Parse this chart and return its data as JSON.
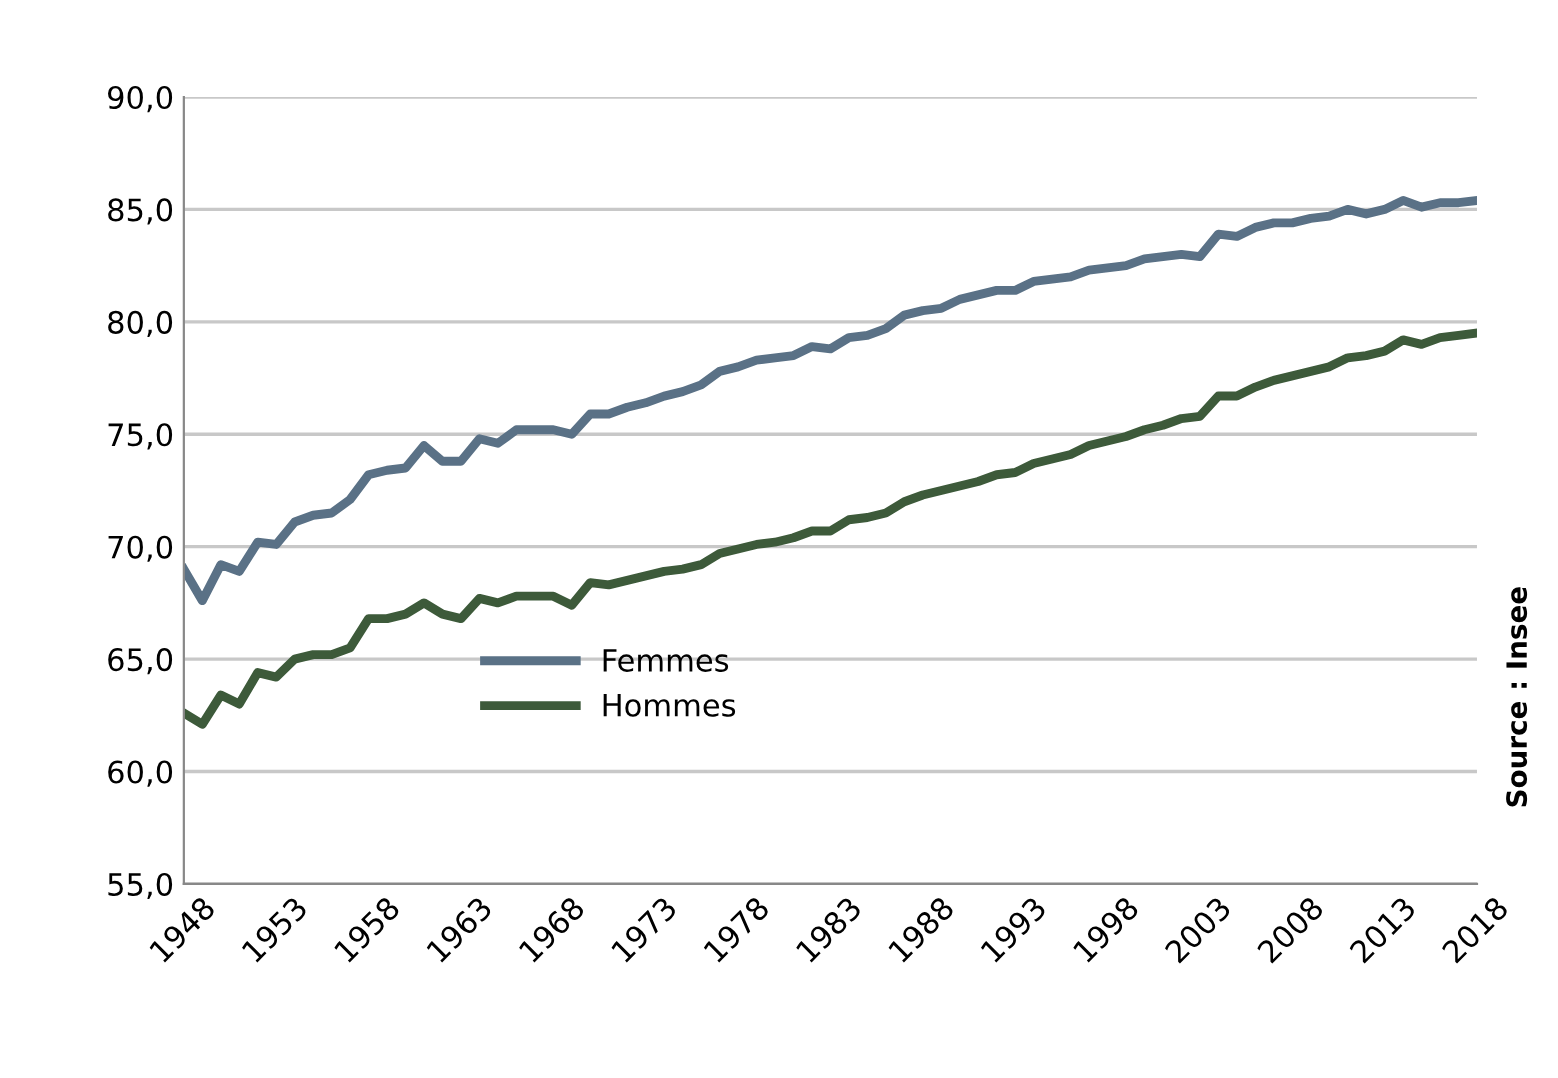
{
  "chart_data": {
    "type": "line",
    "x": [
      1948,
      1949,
      1950,
      1951,
      1952,
      1953,
      1954,
      1955,
      1956,
      1957,
      1958,
      1959,
      1960,
      1961,
      1962,
      1963,
      1964,
      1965,
      1966,
      1967,
      1968,
      1969,
      1970,
      1971,
      1972,
      1973,
      1974,
      1975,
      1976,
      1977,
      1978,
      1979,
      1980,
      1981,
      1982,
      1983,
      1984,
      1985,
      1986,
      1987,
      1988,
      1989,
      1990,
      1991,
      1992,
      1993,
      1994,
      1995,
      1996,
      1997,
      1998,
      1999,
      2000,
      2001,
      2002,
      2003,
      2004,
      2005,
      2006,
      2007,
      2008,
      2009,
      2010,
      2011,
      2012,
      2013,
      2014,
      2015,
      2016,
      2017,
      2018
    ],
    "series": [
      {
        "name": "Femmes",
        "color": "#5a7186",
        "values": [
          69.0,
          67.6,
          69.2,
          68.9,
          70.2,
          70.1,
          71.1,
          71.4,
          71.5,
          72.1,
          73.2,
          73.4,
          73.5,
          74.5,
          73.8,
          73.8,
          74.8,
          74.6,
          75.2,
          75.2,
          75.2,
          75.0,
          75.9,
          75.9,
          76.2,
          76.4,
          76.7,
          76.9,
          77.2,
          77.8,
          78.0,
          78.3,
          78.4,
          78.5,
          78.9,
          78.8,
          79.3,
          79.4,
          79.7,
          80.3,
          80.5,
          80.6,
          81.0,
          81.2,
          81.4,
          81.4,
          81.8,
          81.9,
          82.0,
          82.3,
          82.4,
          82.5,
          82.8,
          82.9,
          83.0,
          82.9,
          83.9,
          83.8,
          84.2,
          84.4,
          84.4,
          84.6,
          84.7,
          85.0,
          84.8,
          85.0,
          85.4,
          85.1,
          85.3,
          85.3,
          85.4
        ]
      },
      {
        "name": "Hommes",
        "color": "#3d5a3a",
        "values": [
          62.6,
          62.1,
          63.4,
          63.0,
          64.4,
          64.2,
          65.0,
          65.2,
          65.2,
          65.5,
          66.8,
          66.8,
          67.0,
          67.5,
          67.0,
          66.8,
          67.7,
          67.5,
          67.8,
          67.8,
          67.8,
          67.4,
          68.4,
          68.3,
          68.5,
          68.7,
          68.9,
          69.0,
          69.2,
          69.7,
          69.9,
          70.1,
          70.2,
          70.4,
          70.7,
          70.7,
          71.2,
          71.3,
          71.5,
          72.0,
          72.3,
          72.5,
          72.7,
          72.9,
          73.2,
          73.3,
          73.7,
          73.9,
          74.1,
          74.5,
          74.7,
          74.9,
          75.2,
          75.4,
          75.7,
          75.8,
          76.7,
          76.7,
          77.1,
          77.4,
          77.6,
          77.8,
          78.0,
          78.4,
          78.5,
          78.7,
          79.2,
          79.0,
          79.3,
          79.4,
          79.5
        ]
      }
    ],
    "xlim": [
      1948,
      2018
    ],
    "xticks": [
      1948,
      1953,
      1958,
      1963,
      1968,
      1973,
      1978,
      1983,
      1988,
      1993,
      1998,
      2003,
      2008,
      2013,
      2018
    ],
    "ylim": [
      55,
      90
    ],
    "yticks": [
      {
        "value": 55,
        "label": "55,0"
      },
      {
        "value": 60,
        "label": "60,0"
      },
      {
        "value": 65,
        "label": "65,0"
      },
      {
        "value": 70,
        "label": "70,0"
      },
      {
        "value": 75,
        "label": "75,0"
      },
      {
        "value": 80,
        "label": "80,0"
      },
      {
        "value": 85,
        "label": "85,0"
      },
      {
        "value": 90,
        "label": "90,0"
      }
    ],
    "grid": "y",
    "legend": "bottom",
    "marker": "none",
    "line_style": "solid",
    "annotations": [
      "Source : Insee"
    ]
  }
}
